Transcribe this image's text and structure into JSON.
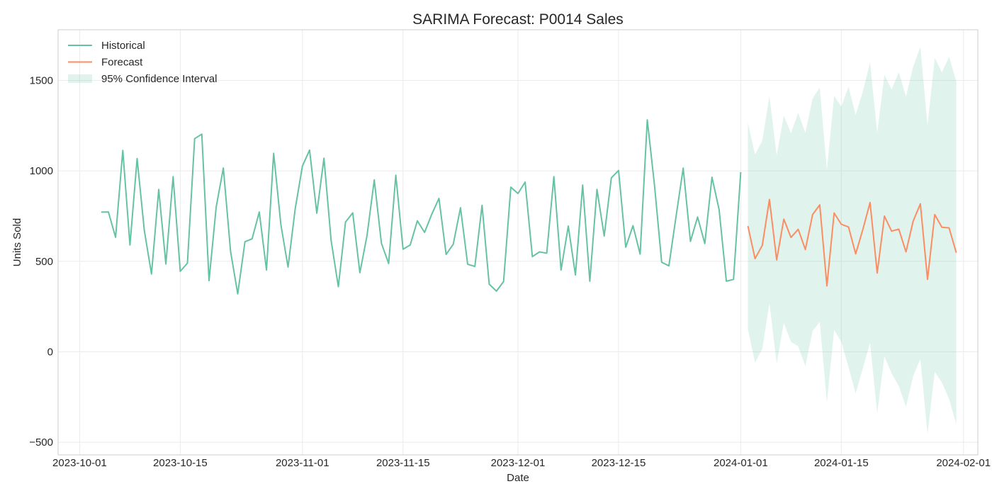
{
  "chart_data": {
    "type": "line",
    "title": "SARIMA Forecast: P0014 Sales",
    "xlabel": "Date",
    "ylabel": "Units Sold",
    "xlim": [
      "2023-09-28",
      "2024-02-03"
    ],
    "ylim": [
      -570,
      1780
    ],
    "x_ticks": [
      "2023-10-01",
      "2023-10-15",
      "2023-11-01",
      "2023-11-15",
      "2023-12-01",
      "2023-12-15",
      "2024-01-01",
      "2024-01-15",
      "2024-02-01"
    ],
    "y_ticks": [
      -500,
      0,
      500,
      1000,
      1500
    ],
    "y_tick_labels": [
      "−500",
      "0",
      "500",
      "1000",
      "1500"
    ],
    "grid": true,
    "legend_position": "top-left",
    "colors": {
      "historical": "#66c2a5",
      "forecast": "#fc8d62",
      "ci": "#66c2a5"
    },
    "legend": [
      {
        "label": "Historical",
        "kind": "line",
        "color": "#66c2a5"
      },
      {
        "label": "Forecast",
        "kind": "line",
        "color": "#fc8d62"
      },
      {
        "label": "95% Confidence Interval",
        "kind": "patch",
        "color": "#66c2a5"
      }
    ],
    "series": [
      {
        "name": "Historical",
        "start": "2023-10-04",
        "values": [
          772,
          773,
          633,
          1113,
          590,
          1068,
          670,
          430,
          897,
          485,
          968,
          445,
          490,
          1178,
          1203,
          393,
          800,
          1016,
          555,
          320,
          608,
          624,
          773,
          452,
          1097,
          703,
          468,
          790,
          1027,
          1115,
          766,
          1070,
          615,
          360,
          717,
          768,
          437,
          643,
          950,
          600,
          488,
          976,
          567,
          590,
          724,
          660,
          760,
          848,
          538,
          595,
          796,
          484,
          472,
          810,
          374,
          335,
          388,
          910,
          875,
          938,
          526,
          552,
          545,
          968,
          452,
          695,
          425,
          922,
          390,
          898,
          640,
          962,
          1002,
          578,
          697,
          540,
          1282,
          920,
          495,
          475,
          748,
          1015,
          610,
          745,
          598,
          965,
          785,
          390,
          400,
          993
        ]
      },
      {
        "name": "Forecast",
        "start": "2024-01-02",
        "values": [
          695,
          515,
          588,
          842,
          508,
          733,
          632,
          677,
          565,
          758,
          812,
          364,
          767,
          705,
          690,
          541,
          677,
          825,
          435,
          750,
          667,
          678,
          552,
          722,
          818,
          400,
          758,
          688,
          685,
          548
        ]
      },
      {
        "name": "95% Confidence Interval",
        "start": "2024-01-02",
        "upper": [
          1265,
          1090,
          1167,
          1413,
          1085,
          1305,
          1208,
          1320,
          1210,
          1400,
          1460,
          1005,
          1415,
          1355,
          1465,
          1310,
          1440,
          1600,
          1210,
          1530,
          1450,
          1545,
          1410,
          1575,
          1685,
          1250,
          1625,
          1545,
          1630,
          1495
        ],
        "lower": [
          125,
          -60,
          15,
          270,
          -65,
          160,
          55,
          30,
          -80,
          115,
          165,
          -280,
          120,
          55,
          -85,
          -230,
          -90,
          50,
          -340,
          -25,
          -120,
          -190,
          -305,
          -135,
          -40,
          -455,
          -110,
          -170,
          -260,
          -400
        ]
      }
    ]
  }
}
